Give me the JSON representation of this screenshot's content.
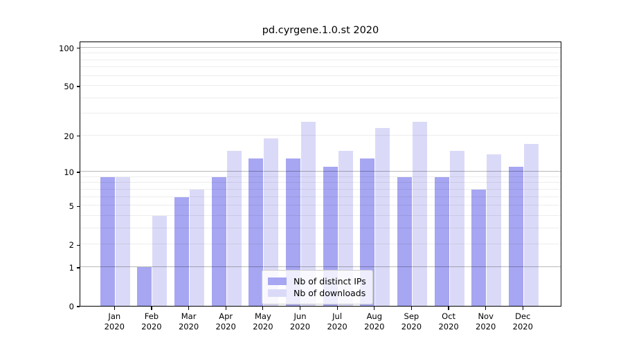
{
  "chart_data": {
    "type": "bar",
    "title": "pd.cyrgene.1.0.st 2020",
    "categories": [
      "Jan",
      "Feb",
      "Mar",
      "Apr",
      "May",
      "Jun",
      "Jul",
      "Aug",
      "Sep",
      "Oct",
      "Nov",
      "Dec"
    ],
    "category_year": "2020",
    "series": [
      {
        "name": "Nb of distinct IPs",
        "color": "#a6a6f2",
        "values": [
          9,
          1,
          6,
          9,
          13,
          13,
          11,
          13,
          9,
          9,
          7,
          11
        ]
      },
      {
        "name": "Nb of downloads",
        "color": "#dadaf8",
        "values": [
          9,
          4,
          7,
          15,
          19,
          26,
          15,
          23,
          26,
          15,
          14,
          17
        ]
      }
    ],
    "xlabel": "",
    "ylabel": "",
    "y_scale": "log1p",
    "ylim": [
      0,
      113
    ],
    "y_ticks": [
      0,
      1,
      2,
      5,
      10,
      20,
      50,
      100
    ],
    "y_major_gridlines": [
      1,
      10,
      100
    ],
    "y_minor_gridlines": [
      2,
      3,
      4,
      5,
      6,
      7,
      8,
      9,
      20,
      30,
      40,
      50,
      60,
      70,
      80,
      90
    ],
    "grid": true,
    "legend": {
      "position": "lower center",
      "entries": [
        "Nb of distinct IPs",
        "Nb of downloads"
      ]
    },
    "colors": {
      "background": "#ffffff",
      "axis": "#000000",
      "major_grid": "rgba(0,0,0,0.28)",
      "minor_grid": "rgba(0,0,0,0.07)"
    }
  }
}
